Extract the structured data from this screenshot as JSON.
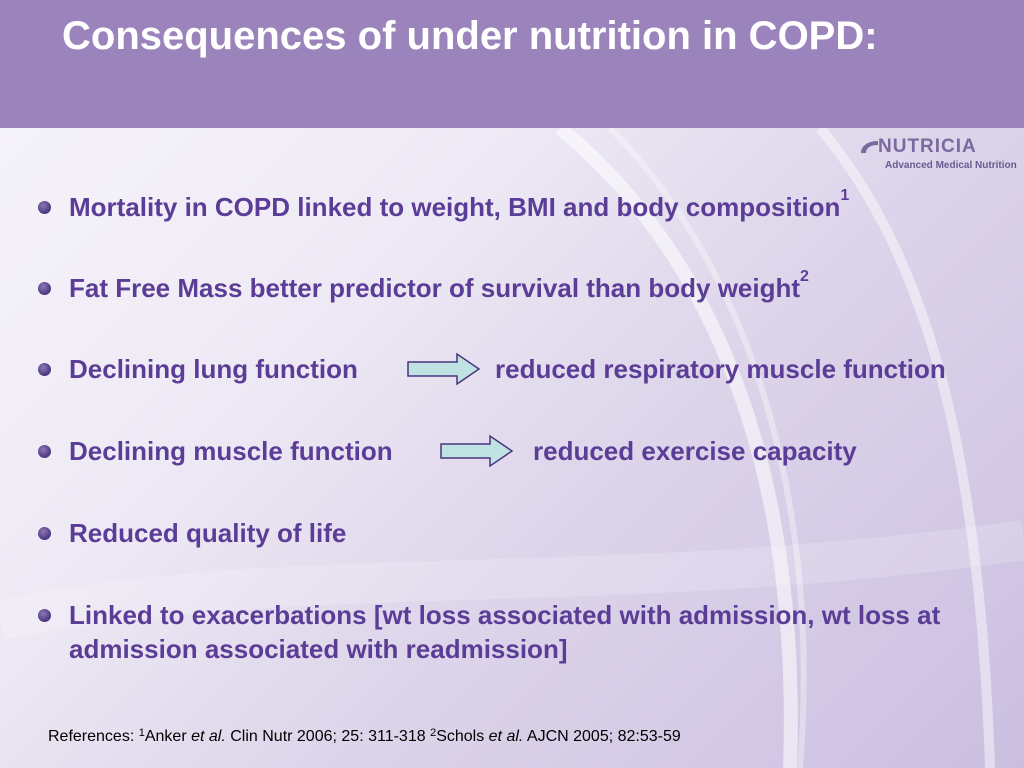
{
  "slide": {
    "title": "Consequences of under nutrition in COPD:",
    "logo": {
      "word": "NUTRICIA",
      "subtitle": "Advanced Medical Nutrition"
    },
    "bullets": [
      {
        "text": "Mortality in COPD linked to weight, BMI and body composition",
        "sup": "1"
      },
      {
        "text": "Fat Free Mass better predictor of survival than body weight",
        "sup": "2"
      },
      {
        "left": "Declining lung function",
        "right": "reduced respiratory muscle function"
      },
      {
        "left": "Declining muscle function",
        "right": "reduced exercise capacity"
      },
      {
        "text": "Reduced quality of life"
      },
      {
        "text": "Linked to exacerbations [wt loss associated with admission, wt loss at admission associated with readmission]"
      }
    ],
    "references": {
      "prefix": "References: ",
      "ref1_sup": "1",
      "ref1_author": "Anker ",
      "ref1_etal": "et al.",
      "ref1_rest": " Clin Nutr 2006; 25: 311-318 ",
      "ref2_sup": "2",
      "ref2_author": "Schols ",
      "ref2_etal": "et al.",
      "ref2_rest": " AJCN 2005; 82:53-59"
    }
  },
  "colors": {
    "header": "#9b84bc",
    "bullet_text": "#5b3d97",
    "arrow_fill": "#bfe3e3",
    "arrow_stroke": "#4a3580"
  }
}
